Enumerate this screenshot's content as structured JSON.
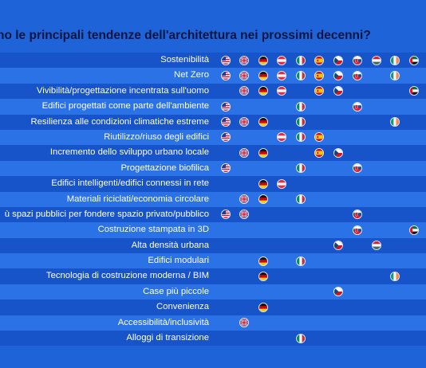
{
  "title": "no le principali tendenze dell'architettura nei prossimi decenni?",
  "columns": [
    "us",
    "gb",
    "de",
    "at",
    "it",
    "es",
    "cz",
    "sk",
    "hu",
    "ie",
    "ae"
  ],
  "rows": [
    {
      "label": "Sostenibilità",
      "flags": [
        "us",
        "gb",
        "de",
        "at",
        "it",
        "es",
        "cz",
        "sk",
        "hu",
        "ie",
        "ae"
      ]
    },
    {
      "label": "Net Zero",
      "flags": [
        "us",
        "gb",
        "de",
        "at",
        "it",
        "es",
        "cz",
        "sk",
        "ie"
      ]
    },
    {
      "label": "Vivibilità/progettazione incentrata sull'uomo",
      "flags": [
        "gb",
        "de",
        "at",
        "es",
        "cz",
        "ae"
      ]
    },
    {
      "label": "Edifici progettati come parte dell'ambiente",
      "flags": [
        "us",
        "it",
        "sk"
      ]
    },
    {
      "label": "Resilienza alle condizioni climatiche estreme",
      "flags": [
        "us",
        "gb",
        "de",
        "it",
        "ie"
      ]
    },
    {
      "label": "Riutilizzo/riuso degli edifici",
      "flags": [
        "us",
        "at",
        "it",
        "es"
      ]
    },
    {
      "label": "Incremento dello sviluppo urbano locale",
      "flags": [
        "gb",
        "de",
        "es",
        "cz"
      ]
    },
    {
      "label": "Progettazione biofilica",
      "flags": [
        "us",
        "it",
        "sk"
      ]
    },
    {
      "label": "Edifici intelligenti/edifici connessi in rete",
      "flags": [
        "de",
        "at"
      ]
    },
    {
      "label": "Materiali riciclati/economia circolare",
      "flags": [
        "gb",
        "de",
        "it"
      ]
    },
    {
      "label": "ù spazi pubblici per fondere spazio privato/pubblico",
      "flags": [
        "us",
        "gb",
        "sk"
      ]
    },
    {
      "label": "Costruzione stampata in 3D",
      "flags": [
        "sk",
        "ae"
      ]
    },
    {
      "label": "Alta densità urbana",
      "flags": [
        "cz",
        "hu"
      ]
    },
    {
      "label": "Edifici modulari",
      "flags": [
        "de",
        "it"
      ]
    },
    {
      "label": "Tecnologia di costruzione moderna / BIM",
      "flags": [
        "de",
        "ie"
      ]
    },
    {
      "label": "Case più piccole",
      "flags": [
        "cz"
      ]
    },
    {
      "label": "Convenienza",
      "flags": [
        "de"
      ]
    },
    {
      "label": "Accessibilità/inclusività",
      "flags": [
        "gb"
      ]
    },
    {
      "label": "Alloggi di transizione",
      "flags": [
        "it"
      ]
    }
  ]
}
